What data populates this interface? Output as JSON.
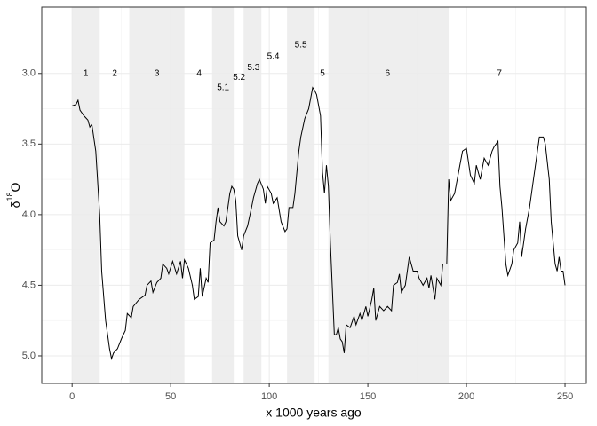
{
  "chart_data": {
    "type": "line",
    "xlabel": "x 1000 years ago",
    "ylabel": [
      "δ",
      "18",
      "O"
    ],
    "xlim": [
      -15.4,
      260.8
    ],
    "ylim": [
      2.53,
      5.195
    ],
    "y_reversed": true,
    "xticks": [
      0,
      50,
      100,
      150,
      200,
      250
    ],
    "yticks": [
      {
        "value": 3,
        "label": "3.0"
      },
      {
        "value": 3.5,
        "label": "3.5"
      },
      {
        "value": 4,
        "label": "4.0"
      },
      {
        "value": 4.5,
        "label": "4.5"
      },
      {
        "value": 5,
        "label": "5.0"
      }
    ],
    "x_minor_grid": [
      25,
      75,
      125,
      175,
      225
    ],
    "y_minor_grid": [
      3.25,
      3.75,
      4.25,
      4.75
    ],
    "grid": true,
    "band_color": "#ebebeb",
    "bands": [
      [
        0,
        14
      ],
      [
        29,
        57
      ],
      [
        71,
        82
      ],
      [
        87,
        96
      ],
      [
        109,
        123
      ],
      [
        130,
        191
      ]
    ],
    "annotations": [
      {
        "text": "1",
        "x": 7,
        "y": 3.0
      },
      {
        "text": "2",
        "x": 21.6,
        "y": 3.0
      },
      {
        "text": "3",
        "x": 43,
        "y": 3.0
      },
      {
        "text": "4",
        "x": 64.4,
        "y": 3.0
      },
      {
        "text": "5.1",
        "x": 76.6,
        "y": 3.1
      },
      {
        "text": "5.2",
        "x": 84.7,
        "y": 3.03
      },
      {
        "text": "5.3",
        "x": 92,
        "y": 2.96
      },
      {
        "text": "5.4",
        "x": 102,
        "y": 2.88
      },
      {
        "text": "5.5",
        "x": 116,
        "y": 2.8
      },
      {
        "text": "5",
        "x": 127,
        "y": 3.0
      },
      {
        "text": "6",
        "x": 160,
        "y": 3.0
      },
      {
        "text": "7",
        "x": 216.7,
        "y": 3.0
      }
    ],
    "color": "#000000",
    "x": [
      0,
      2,
      3,
      4,
      6,
      8,
      9,
      10,
      12,
      14,
      15,
      17,
      19,
      20,
      21,
      23,
      25,
      27,
      28,
      30,
      31,
      34,
      37,
      38,
      40,
      41,
      43,
      45,
      46,
      48,
      49,
      51,
      53,
      55,
      56,
      57,
      59,
      61,
      62,
      64,
      65,
      66,
      68,
      69,
      70,
      72,
      73,
      74,
      75,
      77,
      78,
      80,
      81,
      82,
      83,
      84,
      86,
      87,
      89,
      91,
      92,
      94,
      95,
      97,
      98,
      99,
      101,
      102,
      104,
      106,
      108,
      109,
      110,
      112,
      113,
      115,
      116,
      118,
      120,
      122,
      123,
      124,
      126,
      127,
      128,
      129,
      130,
      131,
      133,
      134,
      135,
      136,
      137,
      138,
      139,
      141,
      143,
      144,
      146,
      147,
      149,
      150,
      152,
      153,
      154,
      156,
      158,
      160,
      162,
      163,
      165,
      166,
      167,
      169,
      171,
      173,
      175,
      176,
      178,
      180,
      181,
      182,
      184,
      185,
      187,
      188,
      190,
      191,
      192,
      194,
      196,
      198,
      200,
      202,
      204,
      205,
      207,
      209,
      211,
      213,
      214,
      215,
      216,
      217,
      218,
      219,
      220,
      221,
      223,
      224,
      226,
      227,
      228,
      230,
      232,
      234,
      236,
      237,
      239,
      240,
      242,
      243,
      244,
      245,
      246,
      247,
      248,
      249,
      250
    ],
    "values": [
      3.23,
      3.22,
      3.19,
      3.26,
      3.3,
      3.33,
      3.38,
      3.36,
      3.55,
      4.0,
      4.4,
      4.75,
      4.95,
      5.02,
      4.98,
      4.95,
      4.88,
      4.82,
      4.7,
      4.73,
      4.65,
      4.6,
      4.57,
      4.5,
      4.47,
      4.55,
      4.48,
      4.45,
      4.35,
      4.38,
      4.42,
      4.33,
      4.42,
      4.33,
      4.45,
      4.32,
      4.38,
      4.5,
      4.6,
      4.58,
      4.38,
      4.58,
      4.45,
      4.48,
      4.2,
      4.18,
      4.05,
      3.95,
      4.05,
      4.08,
      4.05,
      3.85,
      3.8,
      3.82,
      3.9,
      4.15,
      4.25,
      4.15,
      4.08,
      3.95,
      3.88,
      3.78,
      3.75,
      3.82,
      3.92,
      3.8,
      3.85,
      3.92,
      3.88,
      4.05,
      4.12,
      4.1,
      3.95,
      3.95,
      3.85,
      3.55,
      3.45,
      3.32,
      3.25,
      3.1,
      3.12,
      3.15,
      3.3,
      3.7,
      3.85,
      3.65,
      3.8,
      4.2,
      4.85,
      4.85,
      4.8,
      4.88,
      4.9,
      4.98,
      4.78,
      4.8,
      4.72,
      4.78,
      4.7,
      4.75,
      4.65,
      4.72,
      4.6,
      4.52,
      4.75,
      4.65,
      4.68,
      4.65,
      4.68,
      4.5,
      4.48,
      4.42,
      4.55,
      4.5,
      4.3,
      4.4,
      4.4,
      4.45,
      4.5,
      4.45,
      4.52,
      4.43,
      4.6,
      4.45,
      4.5,
      4.35,
      4.35,
      3.75,
      3.9,
      3.85,
      3.7,
      3.55,
      3.53,
      3.72,
      3.78,
      3.65,
      3.75,
      3.6,
      3.65,
      3.55,
      3.52,
      3.5,
      3.48,
      3.8,
      3.95,
      4.15,
      4.35,
      4.43,
      4.35,
      4.25,
      4.2,
      4.05,
      4.3,
      4.1,
      3.95,
      3.75,
      3.55,
      3.45,
      3.45,
      3.5,
      3.75,
      4.05,
      4.2,
      4.35,
      4.4,
      4.3,
      4.4,
      4.4,
      4.5
    ]
  }
}
